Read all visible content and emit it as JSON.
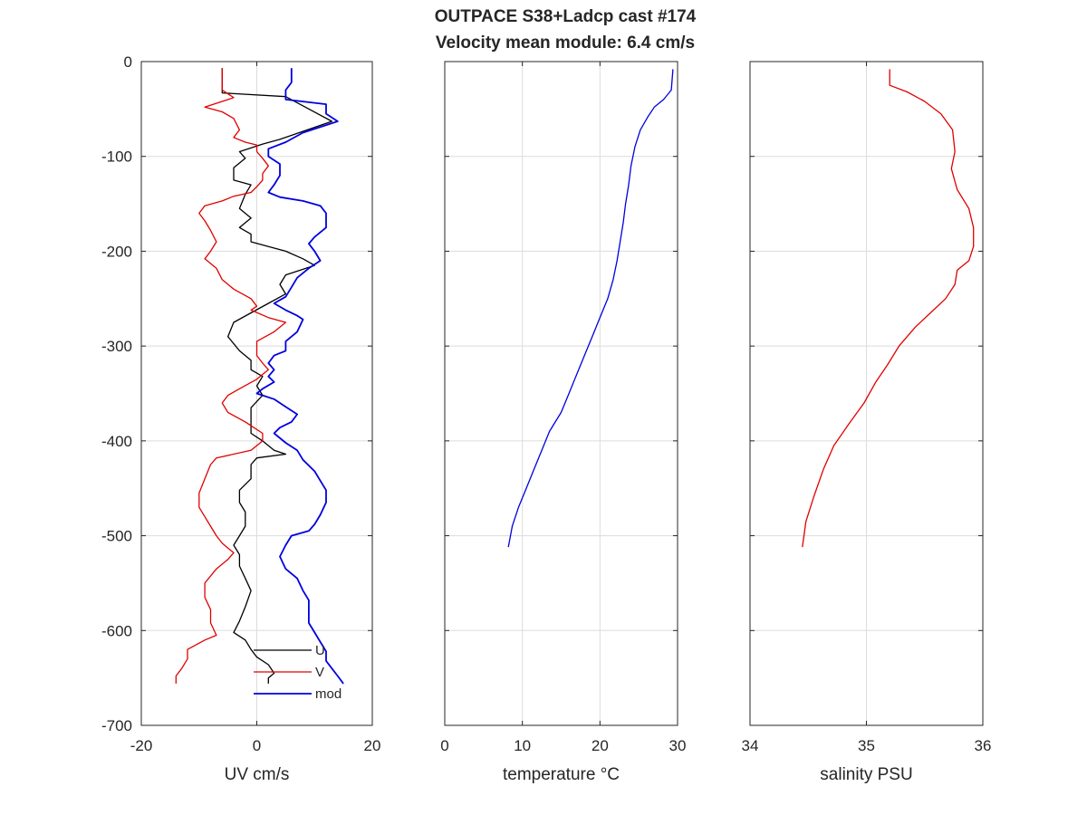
{
  "title_line1": "OUTPACE S38+Ladcp cast #174",
  "title_line2": "Velocity mean module:  6.4 cm/s",
  "colors": {
    "u": "#000000",
    "v": "#e00000",
    "mod": "#0000e0",
    "temperature": "#0000e0",
    "salinity": "#e00000",
    "grid": "#dcdcdc",
    "axis": "#262626"
  },
  "chart_data": [
    {
      "type": "line",
      "xlabel": "UV cm/s",
      "ylabel": "",
      "xlim": [
        -20,
        20
      ],
      "ylim": [
        -700,
        0
      ],
      "xticks": [
        -20,
        0,
        20
      ],
      "yticks": [
        0,
        -100,
        -200,
        -300,
        -400,
        -500,
        -600,
        -700
      ],
      "grid": true,
      "legend": {
        "placement": "bottom-right",
        "entries": [
          "U",
          "V",
          "mod"
        ]
      },
      "series": [
        {
          "name": "U",
          "key": "u",
          "width": 1.3,
          "points": [
            [
              -6,
              -7
            ],
            [
              -6,
              -33
            ],
            [
              5,
              -37
            ],
            [
              13,
              -63
            ],
            [
              4,
              -82
            ],
            [
              1,
              -87
            ],
            [
              -3,
              -95
            ],
            [
              -2,
              -102
            ],
            [
              -4,
              -112
            ],
            [
              -4,
              -125
            ],
            [
              -1,
              -130
            ],
            [
              -2,
              -140
            ],
            [
              -3,
              -155
            ],
            [
              -1,
              -165
            ],
            [
              -3,
              -175
            ],
            [
              -1,
              -182
            ],
            [
              -1,
              -190
            ],
            [
              2,
              -195
            ],
            [
              5,
              -200
            ],
            [
              8,
              -208
            ],
            [
              10,
              -215
            ],
            [
              5,
              -225
            ],
            [
              4,
              -235
            ],
            [
              5,
              -245
            ],
            [
              2,
              -255
            ],
            [
              -1,
              -265
            ],
            [
              -4,
              -275
            ],
            [
              -5,
              -290
            ],
            [
              -3,
              -305
            ],
            [
              -1,
              -315
            ],
            [
              -1,
              -325
            ],
            [
              1,
              -332
            ],
            [
              0,
              -342
            ],
            [
              1,
              -352
            ],
            [
              -1,
              -365
            ],
            [
              -1,
              -380
            ],
            [
              -1,
              -392
            ],
            [
              1,
              -400
            ],
            [
              3,
              -410
            ],
            [
              5,
              -414
            ],
            [
              0,
              -418
            ],
            [
              -1,
              -425
            ],
            [
              -1,
              -440
            ],
            [
              -3,
              -452
            ],
            [
              -3,
              -465
            ],
            [
              -2,
              -475
            ],
            [
              -2,
              -490
            ],
            [
              -3,
              -500
            ],
            [
              -4,
              -510
            ],
            [
              -3,
              -520
            ],
            [
              -3,
              -532
            ],
            [
              -2,
              -545
            ],
            [
              -1,
              -558
            ],
            [
              -2,
              -575
            ],
            [
              -3,
              -590
            ],
            [
              -4,
              -602
            ],
            [
              -2,
              -610
            ],
            [
              -1,
              -620
            ],
            [
              0,
              -628
            ],
            [
              2,
              -636
            ],
            [
              3,
              -645
            ],
            [
              2,
              -650
            ],
            [
              2,
              -656
            ]
          ]
        },
        {
          "name": "V",
          "key": "v",
          "width": 1.3,
          "points": [
            [
              -6,
              -7
            ],
            [
              -6,
              -30
            ],
            [
              -4,
              -38
            ],
            [
              -6,
              -42
            ],
            [
              -9,
              -48
            ],
            [
              -6,
              -53
            ],
            [
              -4,
              -60
            ],
            [
              -3,
              -72
            ],
            [
              -4,
              -80
            ],
            [
              -2,
              -85
            ],
            [
              0,
              -88
            ],
            [
              0,
              -95
            ],
            [
              1,
              -102
            ],
            [
              2,
              -110
            ],
            [
              1,
              -118
            ],
            [
              1,
              -125
            ],
            [
              0,
              -132
            ],
            [
              -1,
              -138
            ],
            [
              -4,
              -142
            ],
            [
              -6,
              -147
            ],
            [
              -9,
              -152
            ],
            [
              -10,
              -160
            ],
            [
              -9,
              -168
            ],
            [
              -8,
              -178
            ],
            [
              -7,
              -190
            ],
            [
              -8,
              -200
            ],
            [
              -9,
              -208
            ],
            [
              -7,
              -218
            ],
            [
              -6,
              -230
            ],
            [
              -4,
              -240
            ],
            [
              -1,
              -250
            ],
            [
              0,
              -258
            ],
            [
              -1,
              -262
            ],
            [
              2,
              -270
            ],
            [
              5,
              -275
            ],
            [
              3,
              -285
            ],
            [
              0,
              -295
            ],
            [
              0,
              -310
            ],
            [
              1,
              -318
            ],
            [
              2,
              -325
            ],
            [
              0,
              -335
            ],
            [
              -3,
              -345
            ],
            [
              -5,
              -352
            ],
            [
              -6,
              -360
            ],
            [
              -5,
              -370
            ],
            [
              -2,
              -380
            ],
            [
              1,
              -392
            ],
            [
              1,
              -400
            ],
            [
              0,
              -405
            ],
            [
              -1,
              -410
            ],
            [
              -7,
              -418
            ],
            [
              -8,
              -425
            ],
            [
              -9,
              -440
            ],
            [
              -10,
              -455
            ],
            [
              -10,
              -470
            ],
            [
              -9,
              -480
            ],
            [
              -8,
              -490
            ],
            [
              -7,
              -500
            ],
            [
              -6,
              -508
            ],
            [
              -5,
              -513
            ],
            [
              -4,
              -518
            ],
            [
              -5,
              -525
            ],
            [
              -7,
              -535
            ],
            [
              -9,
              -550
            ],
            [
              -9,
              -565
            ],
            [
              -8,
              -578
            ],
            [
              -8,
              -592
            ],
            [
              -7,
              -605
            ],
            [
              -9,
              -610
            ],
            [
              -12,
              -620
            ],
            [
              -12,
              -630
            ],
            [
              -13,
              -640
            ],
            [
              -14,
              -648
            ],
            [
              -14,
              -656
            ]
          ]
        },
        {
          "name": "mod",
          "key": "mod",
          "width": 1.8,
          "points": [
            [
              6,
              -7
            ],
            [
              6,
              -22
            ],
            [
              5,
              -30
            ],
            [
              5,
              -40
            ],
            [
              12,
              -45
            ],
            [
              12,
              -55
            ],
            [
              14,
              -63
            ],
            [
              8,
              -75
            ],
            [
              5,
              -85
            ],
            [
              2,
              -92
            ],
            [
              2,
              -100
            ],
            [
              4,
              -108
            ],
            [
              4,
              -120
            ],
            [
              3,
              -130
            ],
            [
              2,
              -138
            ],
            [
              4,
              -143
            ],
            [
              8,
              -147
            ],
            [
              11,
              -152
            ],
            [
              12,
              -160
            ],
            [
              12,
              -175
            ],
            [
              10,
              -185
            ],
            [
              9,
              -192
            ],
            [
              10,
              -200
            ],
            [
              11,
              -210
            ],
            [
              9,
              -218
            ],
            [
              7,
              -228
            ],
            [
              6,
              -238
            ],
            [
              5,
              -248
            ],
            [
              3,
              -255
            ],
            [
              5,
              -262
            ],
            [
              7,
              -268
            ],
            [
              8,
              -272
            ],
            [
              7,
              -285
            ],
            [
              5,
              -295
            ],
            [
              5,
              -305
            ],
            [
              3,
              -310
            ],
            [
              2,
              -318
            ],
            [
              3,
              -325
            ],
            [
              2,
              -332
            ],
            [
              3,
              -338
            ],
            [
              1,
              -345
            ],
            [
              0,
              -350
            ],
            [
              3,
              -356
            ],
            [
              5,
              -364
            ],
            [
              7,
              -372
            ],
            [
              6,
              -380
            ],
            [
              4,
              -386
            ],
            [
              3,
              -392
            ],
            [
              5,
              -402
            ],
            [
              7,
              -410
            ],
            [
              8,
              -420
            ],
            [
              10,
              -432
            ],
            [
              11,
              -442
            ],
            [
              12,
              -452
            ],
            [
              12,
              -465
            ],
            [
              11,
              -478
            ],
            [
              10,
              -488
            ],
            [
              9,
              -495
            ],
            [
              6,
              -500
            ],
            [
              5,
              -510
            ],
            [
              4,
              -522
            ],
            [
              5,
              -535
            ],
            [
              7,
              -545
            ],
            [
              8,
              -558
            ],
            [
              9,
              -568
            ],
            [
              9,
              -580
            ],
            [
              9,
              -592
            ],
            [
              10,
              -602
            ],
            [
              11,
              -612
            ],
            [
              12,
              -622
            ],
            [
              12,
              -632
            ],
            [
              13,
              -640
            ],
            [
              14,
              -648
            ],
            [
              15,
              -656
            ]
          ]
        }
      ]
    },
    {
      "type": "line",
      "xlabel": "temperature °C",
      "ylabel": "",
      "xlim": [
        0,
        30
      ],
      "ylim": [
        -700,
        0
      ],
      "xticks": [
        0,
        10,
        20,
        30
      ],
      "yticks": [
        0,
        -100,
        -200,
        -300,
        -400,
        -500,
        -600,
        -700
      ],
      "grid": true,
      "series": [
        {
          "key": "temperature",
          "width": 1.3,
          "points": [
            [
              29.4,
              -8
            ],
            [
              29.2,
              -30
            ],
            [
              28.2,
              -40
            ],
            [
              27,
              -48
            ],
            [
              26.2,
              -58
            ],
            [
              25.2,
              -72
            ],
            [
              24.5,
              -90
            ],
            [
              24,
              -110
            ],
            [
              23.7,
              -130
            ],
            [
              23.3,
              -150
            ],
            [
              23,
              -170
            ],
            [
              22.6,
              -190
            ],
            [
              22.2,
              -210
            ],
            [
              21.7,
              -230
            ],
            [
              21,
              -250
            ],
            [
              20,
              -270
            ],
            [
              19,
              -290
            ],
            [
              18,
              -310
            ],
            [
              17,
              -330
            ],
            [
              16,
              -350
            ],
            [
              15,
              -370
            ],
            [
              13.5,
              -390
            ],
            [
              12.5,
              -410
            ],
            [
              11.5,
              -430
            ],
            [
              10.5,
              -450
            ],
            [
              9.5,
              -470
            ],
            [
              8.7,
              -490
            ],
            [
              8.2,
              -512
            ]
          ]
        }
      ]
    },
    {
      "type": "line",
      "xlabel": "salinity PSU",
      "ylabel": "",
      "xlim": [
        34,
        36
      ],
      "ylim": [
        -700,
        0
      ],
      "xticks": [
        34,
        35,
        36
      ],
      "yticks": [
        0,
        -100,
        -200,
        -300,
        -400,
        -500,
        -600,
        -700
      ],
      "grid": true,
      "series": [
        {
          "key": "salinity",
          "width": 1.3,
          "points": [
            [
              35.2,
              -8
            ],
            [
              35.2,
              -25
            ],
            [
              35.35,
              -32
            ],
            [
              35.5,
              -42
            ],
            [
              35.64,
              -55
            ],
            [
              35.74,
              -72
            ],
            [
              35.76,
              -95
            ],
            [
              35.73,
              -113
            ],
            [
              35.78,
              -135
            ],
            [
              35.88,
              -155
            ],
            [
              35.92,
              -175
            ],
            [
              35.92,
              -195
            ],
            [
              35.88,
              -210
            ],
            [
              35.78,
              -220
            ],
            [
              35.76,
              -235
            ],
            [
              35.68,
              -250
            ],
            [
              35.55,
              -265
            ],
            [
              35.42,
              -280
            ],
            [
              35.28,
              -300
            ],
            [
              35.18,
              -320
            ],
            [
              35.08,
              -338
            ],
            [
              34.98,
              -360
            ],
            [
              34.85,
              -382
            ],
            [
              34.72,
              -405
            ],
            [
              34.63,
              -430
            ],
            [
              34.55,
              -458
            ],
            [
              34.48,
              -485
            ],
            [
              34.45,
              -512
            ]
          ]
        }
      ]
    }
  ]
}
